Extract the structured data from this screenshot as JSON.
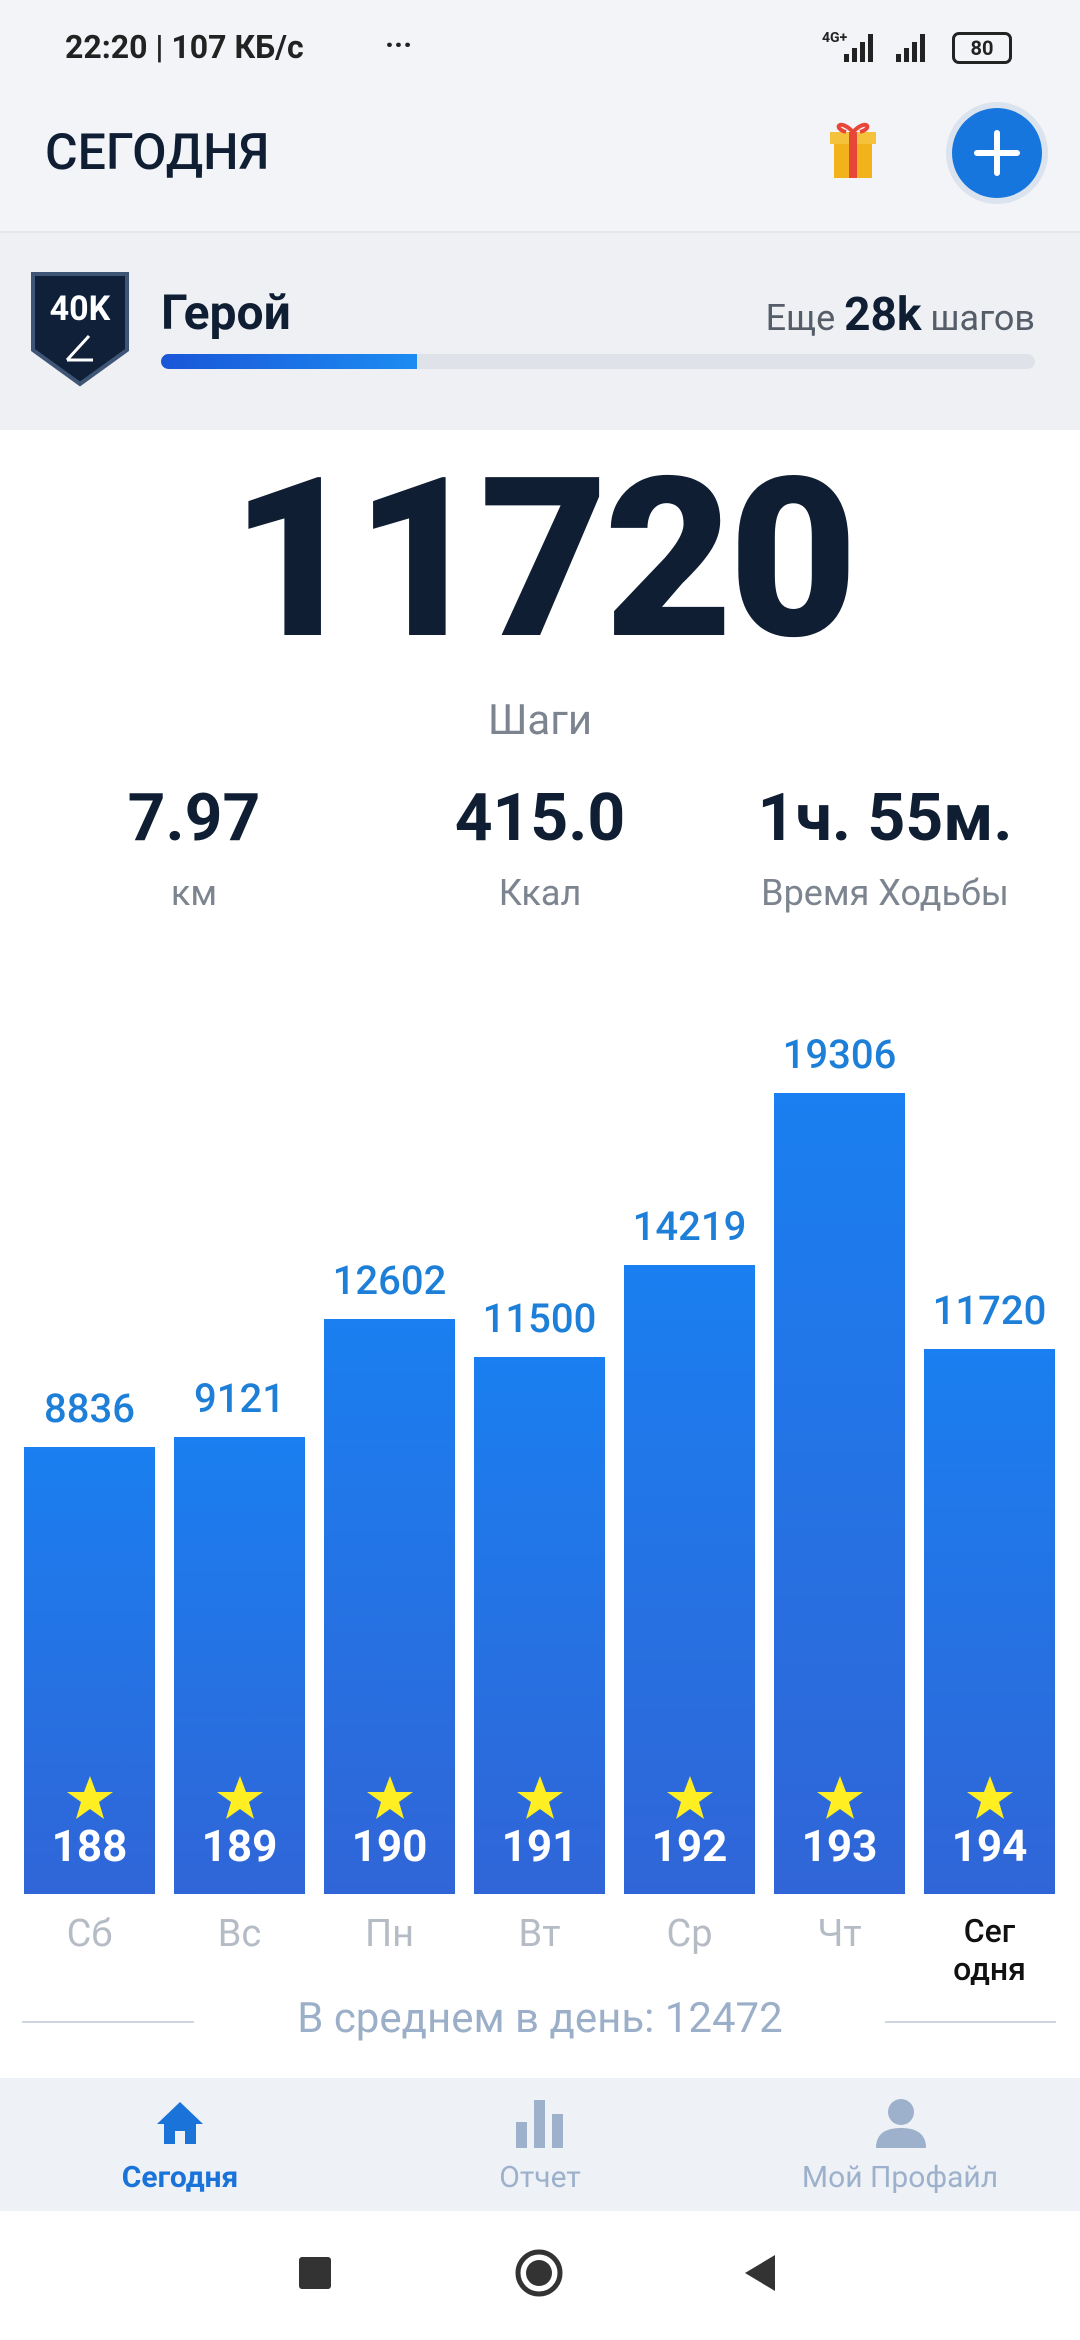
{
  "status_bar": {
    "time": "22:20 | 107 КБ/с",
    "battery": "80",
    "network": "4G+"
  },
  "header": {
    "title": "СЕГОДНЯ"
  },
  "badge": {
    "icon_text": "40K",
    "name": "Герой",
    "remaining_prefix": "Еще",
    "remaining": "28k",
    "remaining_suffix": "шагов"
  },
  "steps": {
    "value": 11720,
    "label": "Шаги"
  },
  "stats": [
    {
      "value": "7.97",
      "label": "км"
    },
    {
      "value": "415.0",
      "label": "Ккал"
    },
    {
      "value": "1ч. 55м.",
      "label": "Время Ходьбы"
    }
  ],
  "chart_data": {
    "type": "bar",
    "categories": [
      "Сб",
      "Вс",
      "Пн",
      "Вт",
      "Ср",
      "Чт",
      "Сег\nодня"
    ],
    "values": [
      8836,
      9121,
      12602,
      11500,
      14219,
      19306,
      11720
    ],
    "day_numbers": [
      188,
      189,
      190,
      191,
      192,
      193,
      194
    ],
    "color": "#1a7ff0"
  },
  "average": {
    "label": "В среднем в день:",
    "value": 12472
  },
  "nav": {
    "items": [
      "Сегодня",
      "Отчет",
      "Мой Профайл"
    ]
  }
}
